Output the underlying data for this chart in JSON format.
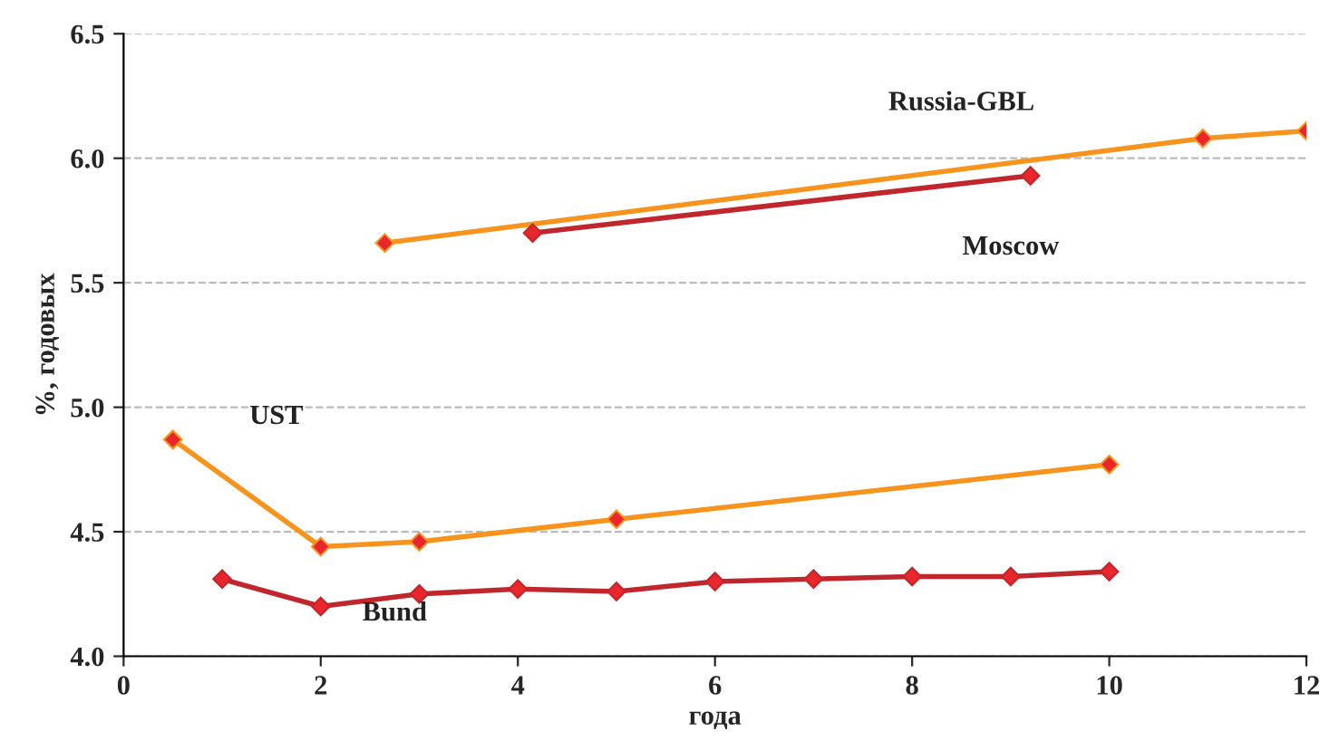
{
  "chart_data": {
    "type": "line",
    "xlabel": "года",
    "ylabel": "%, годовых",
    "xlim": [
      0,
      12
    ],
    "xticks": [
      0,
      2,
      4,
      6,
      8,
      10,
      12
    ],
    "ylim": [
      4.0,
      6.5
    ],
    "yticks": [
      {
        "value": 4.0,
        "label": "4.0"
      },
      {
        "value": 4.5,
        "label": "4.5"
      },
      {
        "value": 5.0,
        "label": "5.0"
      },
      {
        "value": 5.5,
        "label": "5.5"
      },
      {
        "value": 6.0,
        "label": "6.0"
      },
      {
        "value": 6.5,
        "label": "6.5"
      }
    ],
    "grid": "y",
    "legend": false,
    "marker": "diamond",
    "line_style": "solid",
    "series": [
      {
        "name": "Russia-GBL",
        "color": "#f7941d",
        "x": [
          2.65,
          10.95,
          12
        ],
        "values": [
          5.66,
          6.08,
          6.11
        ]
      },
      {
        "name": "Moscow",
        "color": "#c0272d",
        "x": [
          4.15,
          9.2
        ],
        "values": [
          5.7,
          5.93
        ]
      },
      {
        "name": "UST",
        "color": "#f7941d",
        "x": [
          0.5,
          2,
          3,
          5,
          10
        ],
        "values": [
          4.87,
          4.44,
          4.46,
          4.55,
          4.77
        ]
      },
      {
        "name": "Bund",
        "color": "#c0272d",
        "x": [
          1,
          2,
          3,
          4,
          5,
          6,
          7,
          8,
          9,
          10
        ],
        "values": [
          4.31,
          4.2,
          4.25,
          4.27,
          4.26,
          4.3,
          4.31,
          4.32,
          4.32,
          4.34
        ]
      }
    ]
  }
}
